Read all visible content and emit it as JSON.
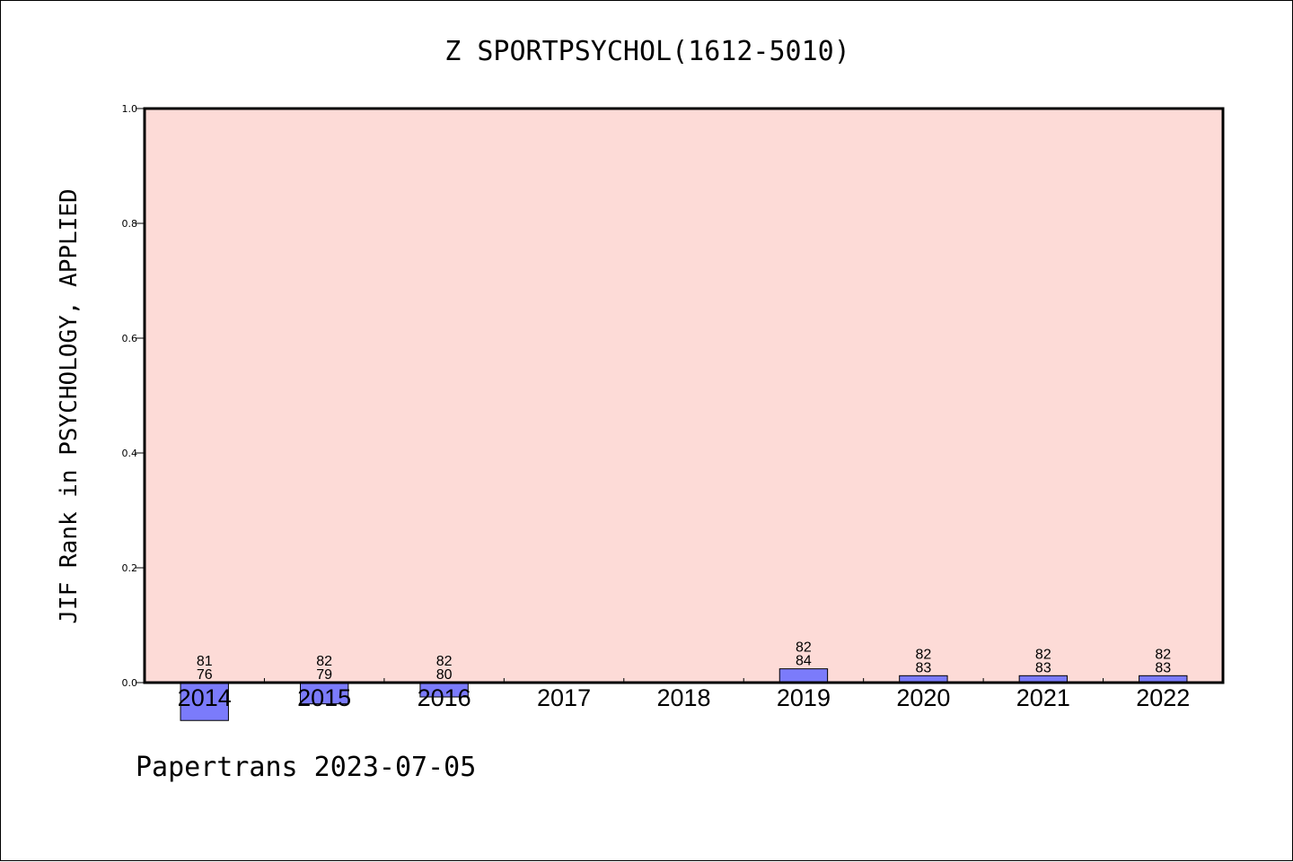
{
  "chart_data": {
    "type": "bar",
    "title": "Z SPORTPSYCHOL(1612-5010)",
    "ylabel": "JIF Rank in PSYCHOLOGY, APPLIED",
    "xlabel": "",
    "ylim": [
      0.0,
      1.0
    ],
    "yticks": [
      "0.0",
      "0.2",
      "0.4",
      "0.6",
      "0.8",
      "1.0"
    ],
    "categories": [
      "2014",
      "2015",
      "2016",
      "2017",
      "2018",
      "2019",
      "2020",
      "2021",
      "2022"
    ],
    "values": [
      -0.066,
      -0.037,
      -0.025,
      null,
      null,
      0.024,
      0.012,
      0.012,
      0.012
    ],
    "label_top": [
      "81",
      "82",
      "82",
      null,
      null,
      "82",
      "82",
      "82",
      "82"
    ],
    "label_bottom": [
      "76",
      "79",
      "80",
      null,
      null,
      "84",
      "83",
      "83",
      "83"
    ],
    "grid": false,
    "colors": {
      "plot_bg": "#fddbd7",
      "bar": "#7b7bfb",
      "bar_edge": "#000000"
    }
  },
  "footer": "Papertrans 2023-07-05"
}
